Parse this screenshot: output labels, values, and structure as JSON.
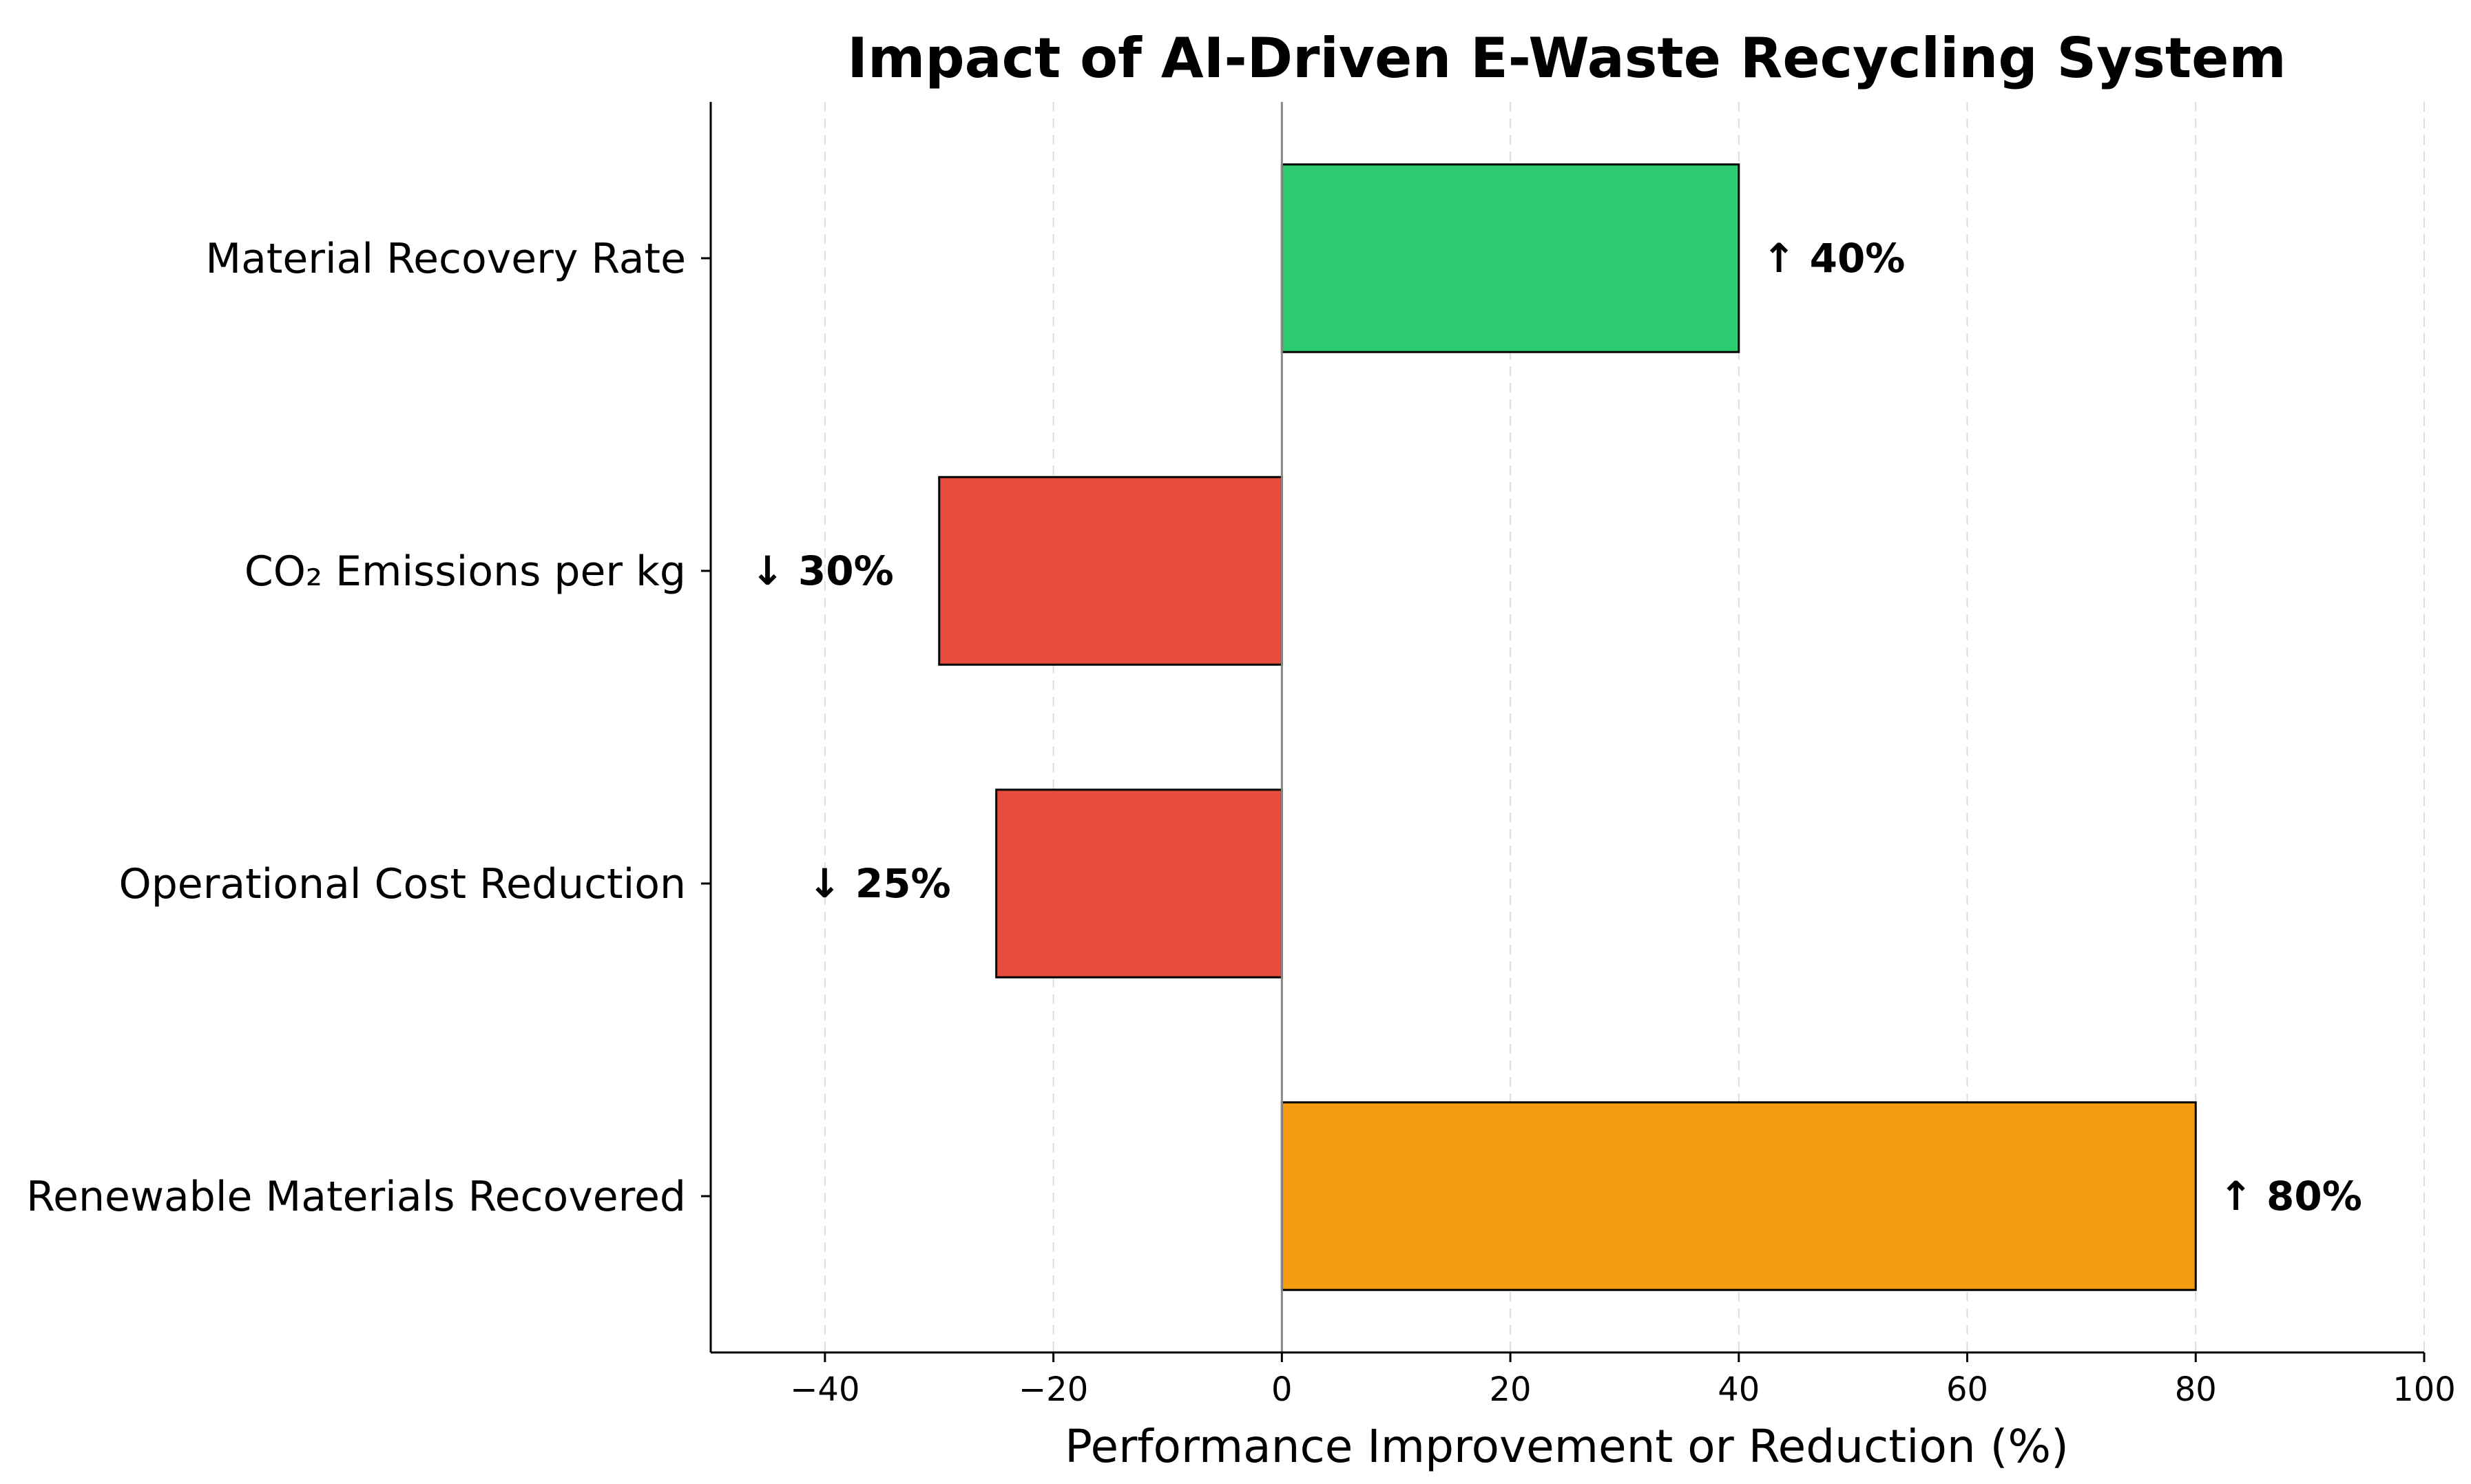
{
  "chart_data": {
    "type": "bar",
    "orientation": "horizontal",
    "title": "Impact of AI-Driven E-Waste Recycling System",
    "xlabel": "Performance Improvement or Reduction (%)",
    "ylabel": "",
    "xlim": [
      -50,
      100
    ],
    "xticks": [
      -40,
      -20,
      0,
      20,
      40,
      60,
      80,
      100
    ],
    "xtick_labels": [
      "−40",
      "−20",
      "0",
      "20",
      "40",
      "60",
      "80",
      "100"
    ],
    "grid": "x-dashed",
    "categories": [
      "Material Recovery Rate",
      "CO₂ Emissions per kg",
      "Operational Cost Reduction",
      "Renewable Materials Recovered"
    ],
    "values": [
      40,
      -30,
      -25,
      80
    ],
    "bar_labels": [
      "↑ 40%",
      "↓ 30%",
      "↓ 25%",
      "↑ 80%"
    ],
    "colors": [
      "#2ecc71",
      "#e74c3c",
      "#e74c3c",
      "#f39c12"
    ]
  }
}
